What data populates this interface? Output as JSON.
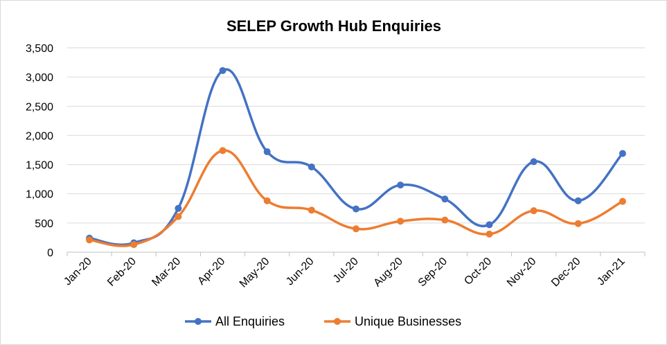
{
  "chart_data": {
    "type": "line",
    "title": "SELEP Growth Hub Enquiries",
    "xlabel": "",
    "ylabel": "",
    "categories": [
      "Jan-20",
      "Feb-20",
      "Mar-20",
      "Apr-20",
      "May-20",
      "Jun-20",
      "Jul-20",
      "Aug-20",
      "Sep-20",
      "Oct-20",
      "Nov-20",
      "Dec-20",
      "Jan-21"
    ],
    "ylim": [
      0,
      3500
    ],
    "yticks": [
      0,
      500,
      1000,
      1500,
      2000,
      2500,
      3000,
      3500
    ],
    "ytick_labels": [
      "0",
      "500",
      "1,000",
      "1,500",
      "2,000",
      "2,500",
      "3,000",
      "3,500"
    ],
    "grid": true,
    "smooth": true,
    "legend_position": "bottom",
    "series": [
      {
        "name": "All Enquiries",
        "color": "#4472c4",
        "values": [
          240,
          160,
          750,
          3110,
          1720,
          1460,
          740,
          1150,
          910,
          470,
          1550,
          880,
          1690
        ]
      },
      {
        "name": "Unique Businesses",
        "color": "#ed7d31",
        "values": [
          210,
          130,
          610,
          1740,
          880,
          720,
          400,
          530,
          550,
          310,
          710,
          490,
          870
        ]
      }
    ]
  }
}
